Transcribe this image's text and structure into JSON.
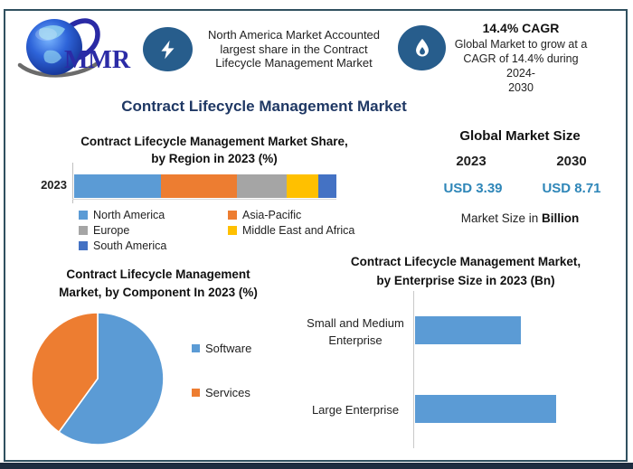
{
  "colors": {
    "frame_border": "#30505f",
    "bottom_band": "#1d2c3f",
    "title_navy": "#1f3864",
    "icon_blue": "#275d8c",
    "value_blue": "#2e86b8",
    "bar_blue": "#5b9bd5",
    "orange": "#ed7d31",
    "gray": "#a5a5a5",
    "yellow": "#ffc000",
    "dark_blue": "#4472c4",
    "logo_text_blue": "#2b2ba6"
  },
  "logo": {
    "text": "MMR"
  },
  "header": {
    "highlight": {
      "icon": "lightning-icon",
      "lines": [
        "North America Market Accounted",
        "largest share in the Contract",
        "Lifecycle Management Market"
      ]
    },
    "cagr": {
      "icon": "flame-icon",
      "title": "14.4% CAGR",
      "lines": [
        "Global Market to grow at a",
        "CAGR of 14.4% during 2024-",
        "2030"
      ]
    }
  },
  "main_title": "Contract Lifecycle Management Market",
  "region_chart": {
    "title_lines": [
      "Contract Lifecycle Management Market Share,",
      "by Region in 2023 (%)"
    ],
    "axis_label": "2023"
  },
  "market_size": {
    "title": "Global Market Size",
    "year_left": "2023",
    "year_right": "2030",
    "value_left": "USD 3.39",
    "value_right": "USD 8.71",
    "caption_prefix": "Market Size in ",
    "caption_bold": "Billion"
  },
  "component_chart": {
    "title_lines": [
      "Contract Lifecycle Management",
      "Market, by Component In 2023 (%)"
    ]
  },
  "enterprise_chart": {
    "title_lines": [
      "Contract Lifecycle Management Market,",
      "by Enterprise Size in 2023 (Bn)"
    ]
  },
  "chart_data": [
    {
      "id": "region_share",
      "type": "bar",
      "subtype": "stacked-horizontal",
      "title": "Contract Lifecycle Management Market Share, by Region in 2023 (%)",
      "categories": [
        "2023"
      ],
      "series": [
        {
          "name": "North America",
          "values": [
            33
          ],
          "color": "#5b9bd5"
        },
        {
          "name": "Asia-Pacific",
          "values": [
            29
          ],
          "color": "#ed7d31"
        },
        {
          "name": "Europe",
          "values": [
            19
          ],
          "color": "#a5a5a5"
        },
        {
          "name": "Middle East and Africa",
          "values": [
            12
          ],
          "color": "#ffc000"
        },
        {
          "name": "South America",
          "values": [
            7
          ],
          "color": "#4472c4"
        }
      ],
      "xlabel": "",
      "ylabel": "",
      "xlim": [
        0,
        100
      ],
      "legend_position": "bottom",
      "note": "segment values estimated from bar widths"
    },
    {
      "id": "component_share",
      "type": "pie",
      "title": "Contract Lifecycle Management Market, by Component In 2023 (%)",
      "labels": [
        "Software",
        "Services"
      ],
      "values": [
        60,
        40
      ],
      "colors": [
        "#5b9bd5",
        "#ed7d31"
      ],
      "start_angle_deg": 0,
      "direction": "clockwise",
      "legend_position": "right",
      "note": "slice values estimated from arc angles"
    },
    {
      "id": "enterprise_size",
      "type": "bar",
      "subtype": "horizontal",
      "title": "Contract Lifecycle Management Market, by Enterprise Size in 2023 (Bn)",
      "categories": [
        "Small and Medium Enterprise",
        "Large Enterprise"
      ],
      "values": [
        1.5,
        2.0
      ],
      "bar_color": "#5b9bd5",
      "xlabel": "",
      "ylabel": "",
      "xlim": [
        0,
        2.65
      ],
      "grid": false,
      "note": "values estimated from relative bar lengths, no data labels shown"
    }
  ]
}
